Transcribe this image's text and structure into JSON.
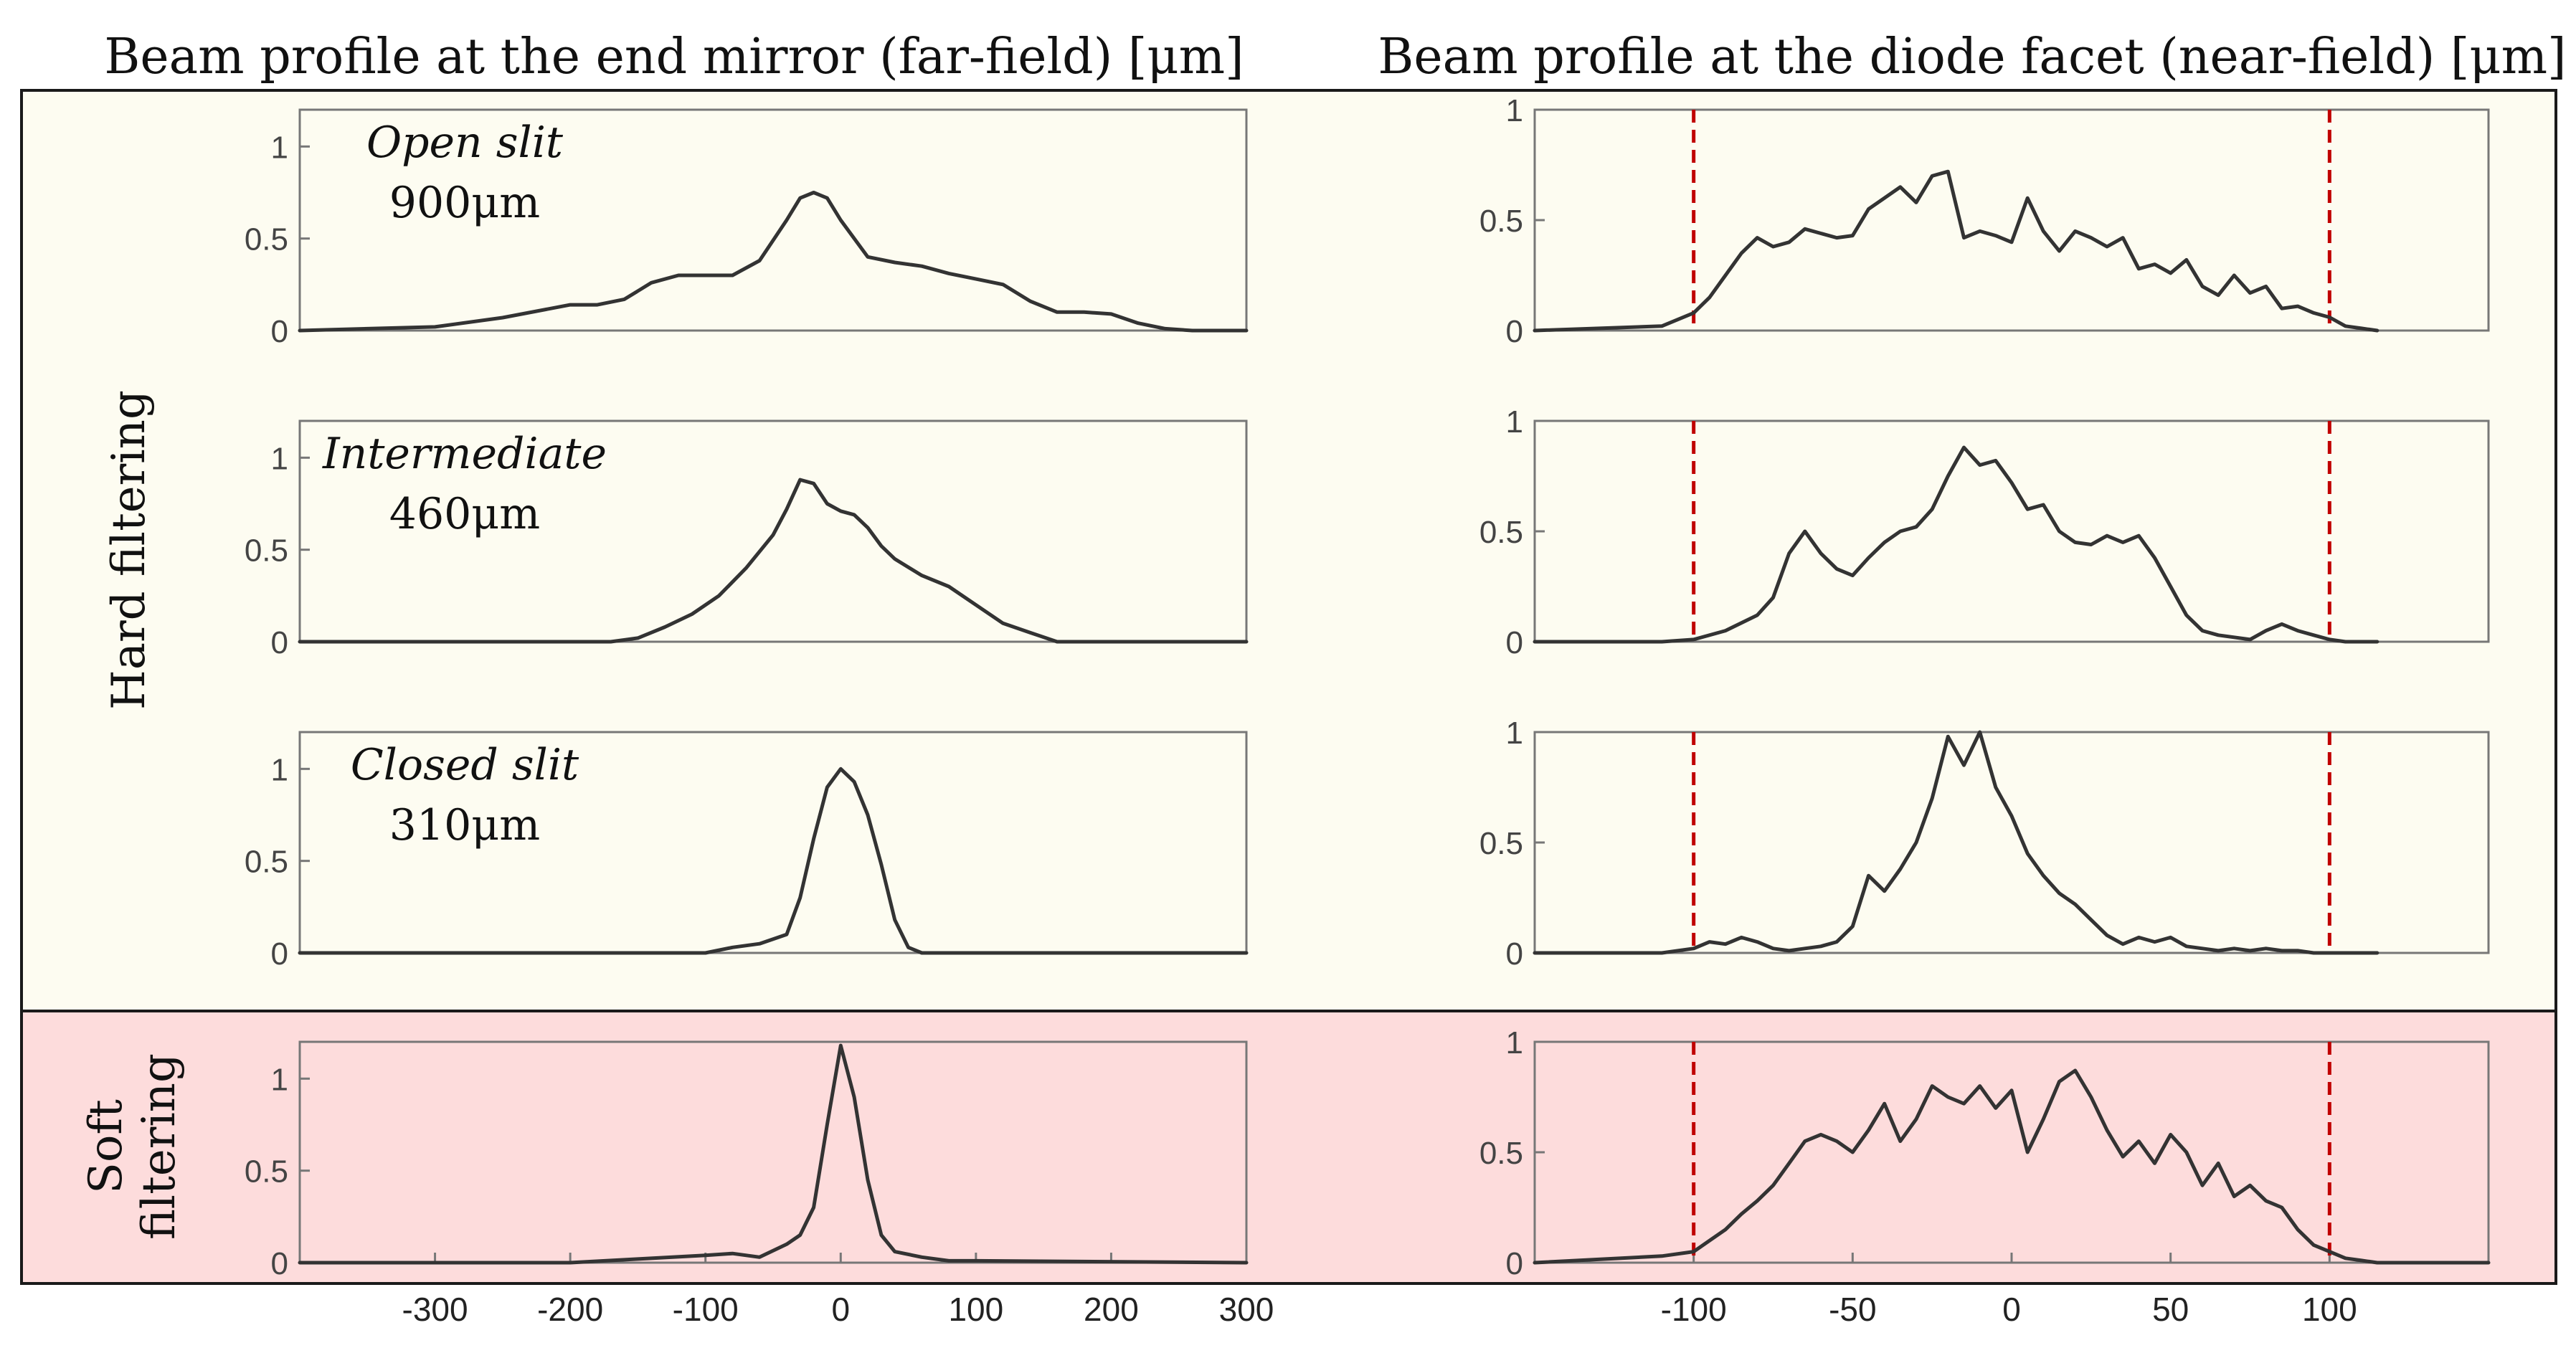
{
  "column_titles": {
    "left": "Beam profile at the end mirror (far-field) [μm]",
    "right": "Beam profile at the diode facet (near-field) [μm]"
  },
  "row_labels": {
    "hard": "Hard filtering",
    "soft_line1": "Soft",
    "soft_line2": "filtering"
  },
  "colors": {
    "hard_bg": "#fdfcf1",
    "soft_bg": "#fddcdc",
    "curve": "#333333",
    "marker": "#c00000"
  },
  "chart_data": [
    {
      "type": "line",
      "panel": "far-field",
      "title": "Open slit",
      "subtitle": "900μm",
      "xlim": [
        -400,
        300
      ],
      "ylim": [
        0,
        1.2
      ],
      "yticks": [
        "0",
        "0.5",
        "1"
      ],
      "x": [
        -400,
        -350,
        -300,
        -250,
        -200,
        -180,
        -160,
        -140,
        -120,
        -100,
        -80,
        -60,
        -40,
        -30,
        -20,
        -10,
        0,
        20,
        40,
        60,
        80,
        100,
        120,
        140,
        160,
        180,
        200,
        220,
        240,
        260,
        280,
        300
      ],
      "y": [
        0,
        0.01,
        0.02,
        0.07,
        0.14,
        0.14,
        0.17,
        0.26,
        0.3,
        0.3,
        0.3,
        0.38,
        0.6,
        0.72,
        0.75,
        0.72,
        0.6,
        0.4,
        0.37,
        0.35,
        0.31,
        0.28,
        0.25,
        0.16,
        0.1,
        0.1,
        0.09,
        0.04,
        0.01,
        0,
        0,
        0
      ]
    },
    {
      "type": "line",
      "panel": "far-field",
      "title": "Intermediate",
      "subtitle": "460μm",
      "xlim": [
        -400,
        300
      ],
      "ylim": [
        0,
        1.2
      ],
      "yticks": [
        "0",
        "0.5",
        "1"
      ],
      "x": [
        -400,
        -200,
        -170,
        -150,
        -130,
        -110,
        -90,
        -70,
        -50,
        -40,
        -30,
        -20,
        -10,
        0,
        10,
        20,
        30,
        40,
        60,
        80,
        100,
        120,
        140,
        160,
        300
      ],
      "y": [
        0,
        0,
        0,
        0.02,
        0.08,
        0.15,
        0.25,
        0.4,
        0.58,
        0.72,
        0.88,
        0.86,
        0.75,
        0.71,
        0.69,
        0.62,
        0.52,
        0.45,
        0.36,
        0.3,
        0.2,
        0.1,
        0.05,
        0,
        0
      ]
    },
    {
      "type": "line",
      "panel": "far-field",
      "title": "Closed slit",
      "subtitle": "310μm",
      "xlim": [
        -400,
        300
      ],
      "ylim": [
        0,
        1.2
      ],
      "yticks": [
        "0",
        "0.5",
        "1"
      ],
      "x": [
        -400,
        -100,
        -80,
        -60,
        -40,
        -30,
        -20,
        -10,
        0,
        10,
        20,
        30,
        40,
        50,
        60,
        80,
        300
      ],
      "y": [
        0,
        0,
        0.03,
        0.05,
        0.1,
        0.3,
        0.62,
        0.9,
        1.0,
        0.93,
        0.75,
        0.48,
        0.18,
        0.03,
        0,
        0,
        0
      ]
    },
    {
      "type": "line",
      "panel": "far-field",
      "title": "Soft filtering",
      "xlim": [
        -400,
        300
      ],
      "ylim": [
        0,
        1.2
      ],
      "yticks": [
        "0",
        "0.5",
        "1"
      ],
      "xticks": [
        "-300",
        "-200",
        "-100",
        "0",
        "100",
        "200",
        "300"
      ],
      "x": [
        -400,
        -200,
        -150,
        -100,
        -80,
        -60,
        -40,
        -30,
        -20,
        -10,
        0,
        10,
        20,
        30,
        40,
        60,
        80,
        100,
        300
      ],
      "y": [
        0,
        0,
        0.02,
        0.04,
        0.05,
        0.03,
        0.1,
        0.15,
        0.3,
        0.75,
        1.18,
        0.9,
        0.45,
        0.15,
        0.06,
        0.03,
        0.01,
        0.01,
        0
      ]
    },
    {
      "type": "line",
      "panel": "near-field",
      "xlim": [
        -150,
        150
      ],
      "ylim": [
        0,
        1.0
      ],
      "yticks": [
        "0",
        "0.5",
        "1"
      ],
      "markers_x": [
        -100,
        100
      ],
      "x": [
        -150,
        -110,
        -100,
        -95,
        -90,
        -85,
        -80,
        -75,
        -70,
        -65,
        -60,
        -55,
        -50,
        -45,
        -40,
        -35,
        -30,
        -25,
        -20,
        -15,
        -10,
        -5,
        0,
        5,
        10,
        15,
        20,
        25,
        30,
        35,
        40,
        45,
        50,
        55,
        60,
        65,
        70,
        75,
        80,
        85,
        90,
        95,
        100,
        105,
        110,
        115
      ],
      "y": [
        0,
        0.02,
        0.08,
        0.15,
        0.25,
        0.35,
        0.42,
        0.38,
        0.4,
        0.46,
        0.44,
        0.42,
        0.43,
        0.55,
        0.6,
        0.65,
        0.58,
        0.7,
        0.72,
        0.42,
        0.45,
        0.43,
        0.4,
        0.6,
        0.45,
        0.36,
        0.45,
        0.42,
        0.38,
        0.42,
        0.28,
        0.3,
        0.26,
        0.32,
        0.2,
        0.16,
        0.25,
        0.17,
        0.2,
        0.1,
        0.11,
        0.08,
        0.06,
        0.02,
        0.01,
        0
      ]
    },
    {
      "type": "line",
      "panel": "near-field",
      "xlim": [
        -150,
        150
      ],
      "ylim": [
        0,
        1.0
      ],
      "yticks": [
        "0",
        "0.5",
        "1"
      ],
      "markers_x": [
        -100,
        100
      ],
      "x": [
        -150,
        -110,
        -100,
        -90,
        -80,
        -75,
        -70,
        -65,
        -60,
        -55,
        -50,
        -45,
        -40,
        -35,
        -30,
        -25,
        -20,
        -15,
        -10,
        -5,
        0,
        5,
        10,
        15,
        20,
        25,
        30,
        35,
        40,
        45,
        50,
        55,
        60,
        65,
        70,
        75,
        80,
        85,
        90,
        95,
        100,
        105,
        110,
        115
      ],
      "y": [
        0,
        0,
        0.01,
        0.05,
        0.12,
        0.2,
        0.4,
        0.5,
        0.4,
        0.33,
        0.3,
        0.38,
        0.45,
        0.5,
        0.52,
        0.6,
        0.75,
        0.88,
        0.8,
        0.82,
        0.72,
        0.6,
        0.62,
        0.5,
        0.45,
        0.44,
        0.48,
        0.45,
        0.48,
        0.38,
        0.25,
        0.12,
        0.05,
        0.03,
        0.02,
        0.01,
        0.05,
        0.08,
        0.05,
        0.03,
        0.01,
        0,
        0,
        0
      ]
    },
    {
      "type": "line",
      "panel": "near-field",
      "xlim": [
        -150,
        150
      ],
      "ylim": [
        0,
        1.0
      ],
      "yticks": [
        "0",
        "0.5",
        "1"
      ],
      "markers_x": [
        -100,
        100
      ],
      "x": [
        -150,
        -110,
        -100,
        -95,
        -90,
        -85,
        -80,
        -75,
        -70,
        -65,
        -60,
        -55,
        -50,
        -45,
        -40,
        -35,
        -30,
        -25,
        -20,
        -15,
        -10,
        -5,
        0,
        5,
        10,
        15,
        20,
        25,
        30,
        35,
        40,
        45,
        50,
        55,
        60,
        65,
        70,
        75,
        80,
        85,
        90,
        95,
        100,
        105,
        110,
        115
      ],
      "y": [
        0,
        0,
        0.02,
        0.05,
        0.04,
        0.07,
        0.05,
        0.02,
        0.01,
        0.02,
        0.03,
        0.05,
        0.12,
        0.35,
        0.28,
        0.38,
        0.5,
        0.7,
        0.98,
        0.85,
        1.0,
        0.75,
        0.62,
        0.45,
        0.35,
        0.27,
        0.22,
        0.15,
        0.08,
        0.04,
        0.07,
        0.05,
        0.07,
        0.03,
        0.02,
        0.01,
        0.02,
        0.01,
        0.02,
        0.01,
        0.01,
        0,
        0,
        0,
        0,
        0
      ]
    },
    {
      "type": "line",
      "panel": "near-field",
      "xlim": [
        -150,
        150
      ],
      "ylim": [
        0,
        1.0
      ],
      "yticks": [
        "0",
        "0.5",
        "1"
      ],
      "markers_x": [
        -100,
        100
      ],
      "xticks": [
        "-100",
        "-50",
        "0",
        "50",
        "100"
      ],
      "x": [
        -150,
        -110,
        -100,
        -95,
        -90,
        -85,
        -80,
        -75,
        -70,
        -65,
        -60,
        -55,
        -50,
        -45,
        -40,
        -35,
        -30,
        -25,
        -20,
        -15,
        -10,
        -5,
        0,
        5,
        10,
        15,
        20,
        25,
        30,
        35,
        40,
        45,
        50,
        55,
        60,
        65,
        70,
        75,
        80,
        85,
        90,
        95,
        100,
        105,
        110,
        115,
        150
      ],
      "y": [
        0,
        0.03,
        0.05,
        0.1,
        0.15,
        0.22,
        0.28,
        0.35,
        0.45,
        0.55,
        0.58,
        0.55,
        0.5,
        0.6,
        0.72,
        0.55,
        0.65,
        0.8,
        0.75,
        0.72,
        0.8,
        0.7,
        0.78,
        0.5,
        0.65,
        0.82,
        0.87,
        0.75,
        0.6,
        0.48,
        0.55,
        0.45,
        0.58,
        0.5,
        0.35,
        0.45,
        0.3,
        0.35,
        0.28,
        0.25,
        0.15,
        0.08,
        0.05,
        0.02,
        0.01,
        0,
        0
      ]
    }
  ]
}
